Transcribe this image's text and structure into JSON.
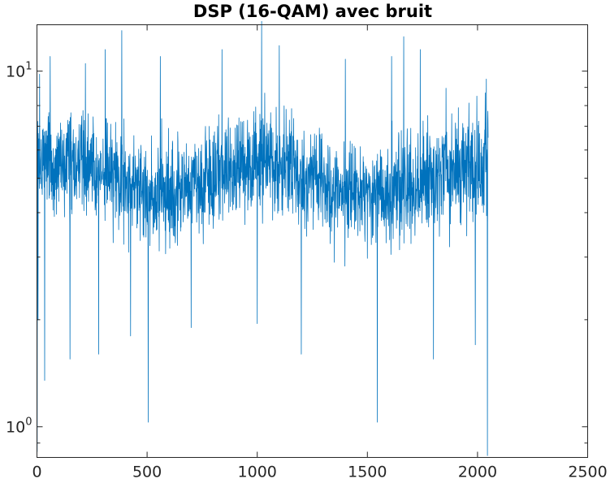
{
  "chart_data": {
    "type": "line",
    "title": "DSP (16-QAM) avec bruit",
    "xlabel": "",
    "ylabel": "",
    "y_scale": "log",
    "xlim": [
      0,
      2500
    ],
    "ylim": [
      0.82,
      13.5
    ],
    "x_ticks": [
      {
        "value": 0,
        "label": "0"
      },
      {
        "value": 500,
        "label": "500"
      },
      {
        "value": 1000,
        "label": "1000"
      },
      {
        "value": 1500,
        "label": "1500"
      },
      {
        "value": 2000,
        "label": "2000"
      },
      {
        "value": 2500,
        "label": "2500"
      }
    ],
    "y_ticks": [
      {
        "value": 1,
        "base": "10",
        "exponent": "0"
      },
      {
        "value": 10,
        "base": "10",
        "exponent": "1"
      }
    ],
    "grid": false,
    "series": [
      {
        "color": "#0072bd",
        "x_range": [
          1,
          2048
        ],
        "typical_range": [
          2.5,
          9.0
        ],
        "median": 5.0,
        "noise": "random, roughly log-normal PSD spread",
        "envelope": "symmetric about x = 1024",
        "samples": [
          {
            "x": 1,
            "y": 0.85
          },
          {
            "x": 5,
            "y": 2.0
          },
          {
            "x": 12,
            "y": 9.8
          },
          {
            "x": 35,
            "y": 1.35
          },
          {
            "x": 60,
            "y": 11.0
          },
          {
            "x": 150,
            "y": 1.55
          },
          {
            "x": 220,
            "y": 10.5
          },
          {
            "x": 280,
            "y": 1.6
          },
          {
            "x": 310,
            "y": 11.5
          },
          {
            "x": 385,
            "y": 13.0
          },
          {
            "x": 425,
            "y": 1.8
          },
          {
            "x": 505,
            "y": 1.03
          },
          {
            "x": 560,
            "y": 11.0
          },
          {
            "x": 700,
            "y": 1.9
          },
          {
            "x": 840,
            "y": 11.5
          },
          {
            "x": 1000,
            "y": 1.95
          },
          {
            "x": 1020,
            "y": 13.8
          },
          {
            "x": 1100,
            "y": 11.8
          },
          {
            "x": 1200,
            "y": 1.6
          },
          {
            "x": 1400,
            "y": 10.8
          },
          {
            "x": 1545,
            "y": 1.03
          },
          {
            "x": 1610,
            "y": 11.0
          },
          {
            "x": 1665,
            "y": 12.5
          },
          {
            "x": 1740,
            "y": 11.5
          },
          {
            "x": 1800,
            "y": 1.55
          },
          {
            "x": 1990,
            "y": 1.7
          },
          {
            "x": 2040,
            "y": 9.5
          },
          {
            "x": 2045,
            "y": 0.83
          },
          {
            "x": 2048,
            "y": 6.5
          }
        ]
      }
    ]
  }
}
